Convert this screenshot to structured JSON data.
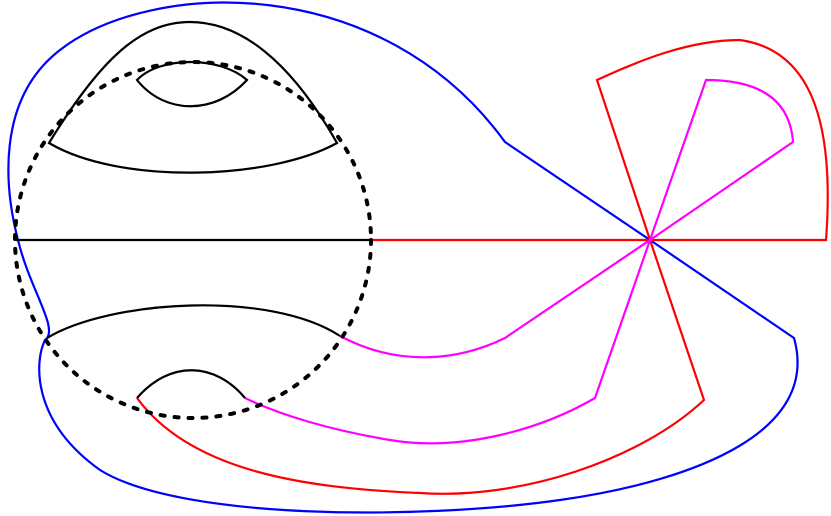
{
  "diagram": {
    "colors": {
      "outer_loop": "#0000ff",
      "red_curves": "#ff0000",
      "magenta_curves": "#ff00ff",
      "black_curves": "#000000",
      "dotted_circle": "#000000",
      "background": "#ffffff"
    },
    "curves": [
      {
        "name": "outer-loop-blue",
        "color": "blue"
      },
      {
        "name": "red-sector",
        "color": "red"
      },
      {
        "name": "magenta-sector",
        "color": "magenta"
      },
      {
        "name": "black-diameter",
        "color": "black"
      },
      {
        "name": "dotted-circle",
        "color": "black",
        "style": "dotted"
      },
      {
        "name": "upper-arc-large",
        "color": "black"
      },
      {
        "name": "upper-arc-small",
        "color": "black"
      },
      {
        "name": "lower-arc-large",
        "color": "black"
      },
      {
        "name": "lower-arc-small",
        "color": "black"
      }
    ]
  }
}
